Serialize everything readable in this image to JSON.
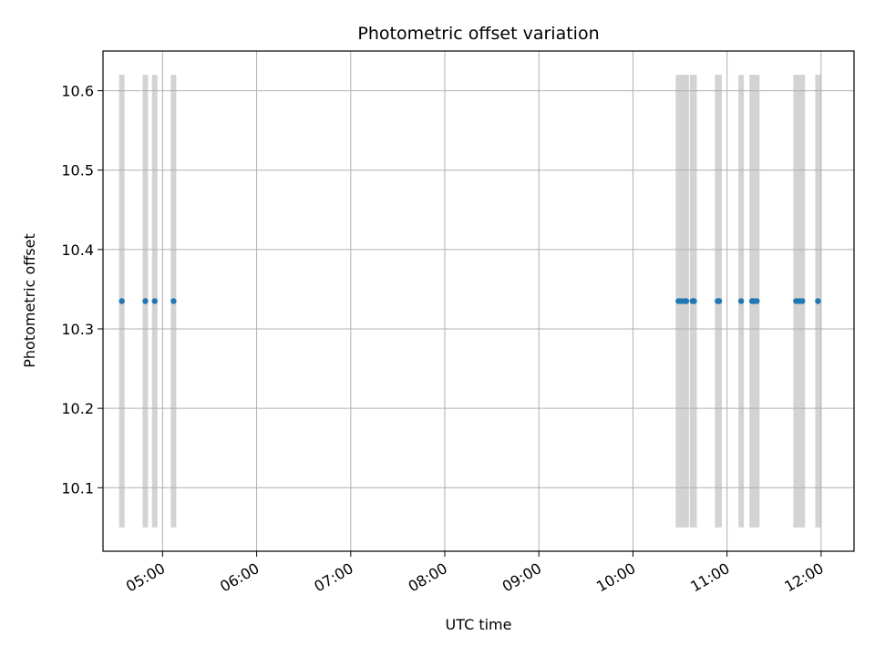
{
  "chart_data": {
    "type": "scatter",
    "title": "Photometric offset variation",
    "xlabel": "UTC time",
    "ylabel": "Photometric offset",
    "grid": true,
    "xlim": [
      "04:22",
      "12:21"
    ],
    "ylim": [
      10.02,
      10.65
    ],
    "x_ticks": [
      "05:00",
      "06:00",
      "07:00",
      "08:00",
      "09:00",
      "10:00",
      "11:00",
      "12:00"
    ],
    "y_ticks": [
      "10.1",
      "10.2",
      "10.3",
      "10.4",
      "10.5",
      "10.6"
    ],
    "marker_color": "#1f77b4",
    "band_color": "#d3d3d3",
    "band_range": [
      10.05,
      10.62
    ],
    "points": [
      {
        "x": "04:34",
        "y": 10.335
      },
      {
        "x": "04:49",
        "y": 10.335
      },
      {
        "x": "04:55",
        "y": 10.335
      },
      {
        "x": "05:07",
        "y": 10.335
      },
      {
        "x": "10:29",
        "y": 10.335
      },
      {
        "x": "10:31",
        "y": 10.335
      },
      {
        "x": "10:33",
        "y": 10.335
      },
      {
        "x": "10:34",
        "y": 10.335
      },
      {
        "x": "10:38",
        "y": 10.335
      },
      {
        "x": "10:39",
        "y": 10.335
      },
      {
        "x": "10:54",
        "y": 10.335
      },
      {
        "x": "10:55",
        "y": 10.335
      },
      {
        "x": "11:09",
        "y": 10.335
      },
      {
        "x": "11:16",
        "y": 10.335
      },
      {
        "x": "11:17",
        "y": 10.335
      },
      {
        "x": "11:19",
        "y": 10.335
      },
      {
        "x": "11:44",
        "y": 10.335
      },
      {
        "x": "11:46",
        "y": 10.335
      },
      {
        "x": "11:48",
        "y": 10.335
      },
      {
        "x": "11:58",
        "y": 10.335
      }
    ]
  }
}
